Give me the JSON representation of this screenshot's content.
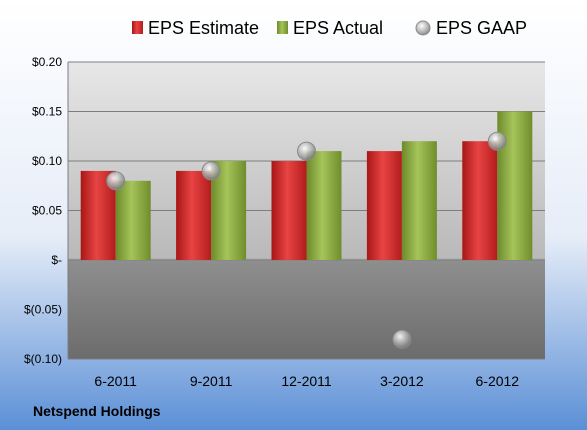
{
  "company_label": "Netspend Holdings",
  "colors": {
    "estimate": "#d42b2b",
    "actual": "#8aaa3c",
    "gaap": "#a8a8a8",
    "background_top": "#ffffff",
    "background_bottom": "#5b8fd6"
  },
  "chart_data": {
    "type": "bar",
    "categories": [
      "6-2011",
      "9-2011",
      "12-2011",
      "3-2012",
      "6-2012"
    ],
    "series": [
      {
        "name": "EPS Estimate",
        "kind": "bar",
        "values": [
          0.09,
          0.09,
          0.1,
          0.11,
          0.12
        ]
      },
      {
        "name": "EPS Actual",
        "kind": "bar",
        "values": [
          0.08,
          0.1,
          0.11,
          0.12,
          0.15
        ]
      },
      {
        "name": "EPS GAAP",
        "kind": "scatter",
        "values": [
          0.08,
          0.09,
          0.11,
          -0.08,
          0.12
        ]
      }
    ],
    "ylim": [
      -0.1,
      0.2
    ],
    "y_ticks": [
      {
        "value": 0.2,
        "label": "$0.20"
      },
      {
        "value": 0.15,
        "label": "$0.15"
      },
      {
        "value": 0.1,
        "label": "$0.10"
      },
      {
        "value": 0.05,
        "label": "$0.05"
      },
      {
        "value": 0.0,
        "label": "$-"
      },
      {
        "value": -0.05,
        "label": "$(0.05)"
      },
      {
        "value": -0.1,
        "label": "$(0.10)"
      }
    ],
    "grid": true,
    "legend_position": "top-center"
  }
}
